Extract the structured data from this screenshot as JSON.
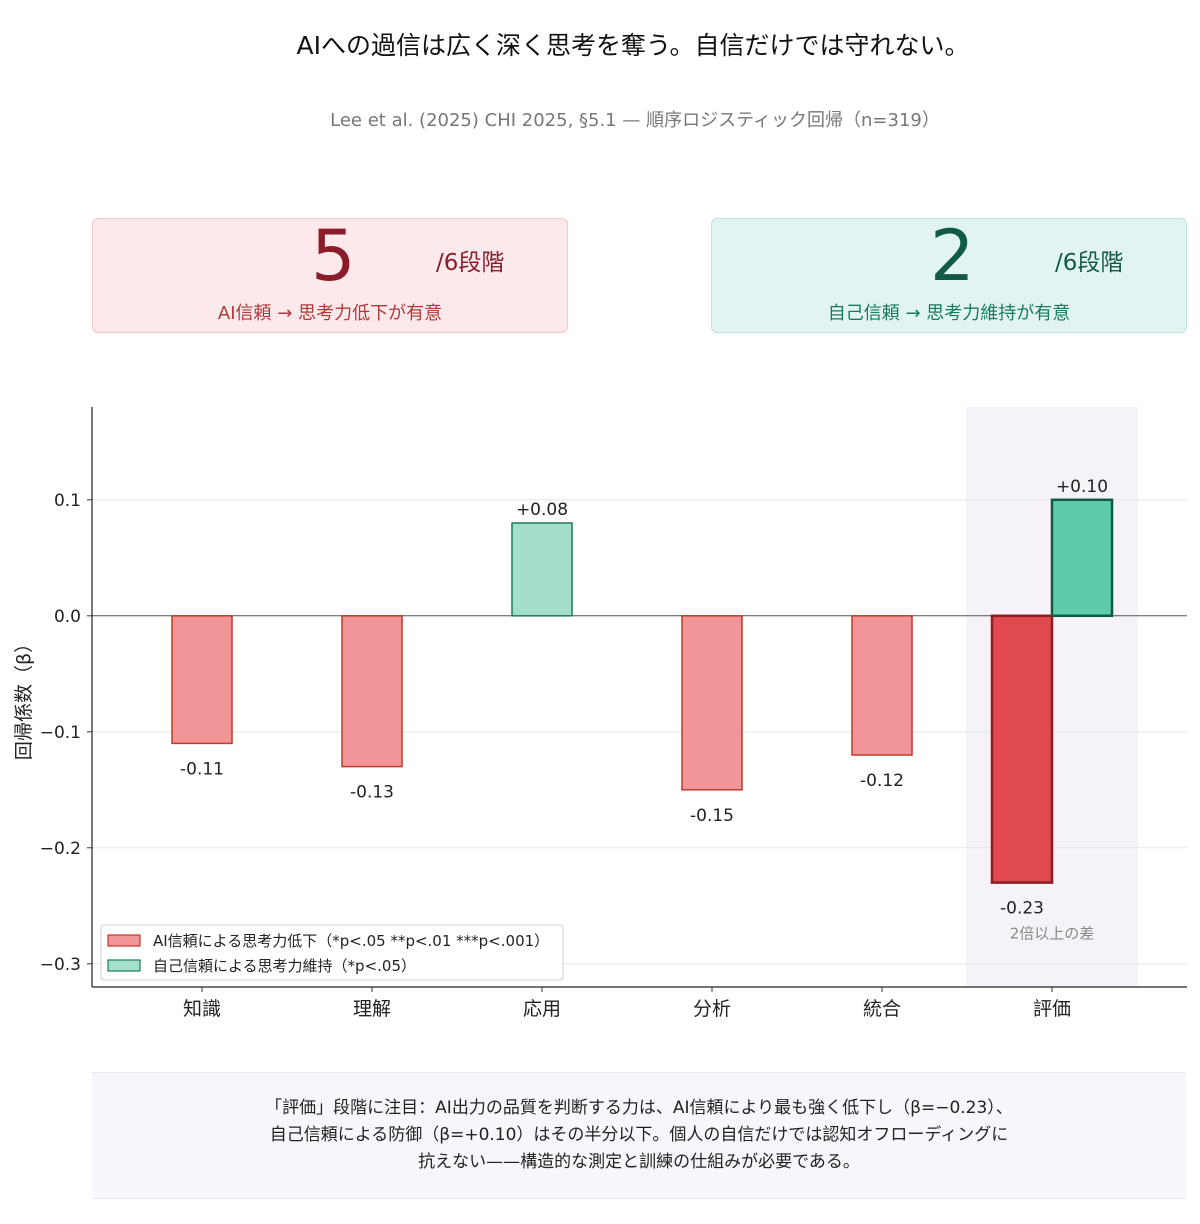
{
  "title": "AIへの過信は広く深く思考を奪う。自信だけでは守れない。",
  "subtitle": "Lee et al. (2025) CHI 2025, §5.1 — 順序ロジスティック回帰（n=319）",
  "cards": {
    "ai": {
      "number": "5",
      "unit": "/6段階",
      "description": "AI信頼 → 思考力低下が有意",
      "color": "#8b1c2a"
    },
    "self": {
      "number": "2",
      "unit": "/6段階",
      "description": "自己信頼 → 思考力維持が有意",
      "color": "#125a45"
    }
  },
  "chart_data": {
    "type": "bar",
    "ylabel": "回帰係数（β）",
    "ylim": [
      -0.32,
      0.18
    ],
    "yticks": [
      0.1,
      0.0,
      -0.1,
      -0.2,
      -0.3
    ],
    "ytick_labels": [
      "0.1",
      "0.0",
      "−0.1",
      "−0.2",
      "−0.3"
    ],
    "categories": [
      "知識",
      "理解",
      "応用",
      "分析",
      "統合",
      "評価"
    ],
    "highlight_category": "評価",
    "highlight_annotation": "2倍以上の差",
    "series": [
      {
        "name": "AI信頼による思考力低下（*p<.05 **p<.01 ***p<.001）",
        "values": [
          -0.11,
          -0.13,
          null,
          -0.15,
          -0.12,
          -0.23
        ],
        "labels": [
          "-0.11",
          "-0.13",
          "",
          "-0.15",
          "-0.12",
          "-0.23"
        ],
        "color": "#f29598",
        "edge": "#c0392b",
        "highlight_color": "#e04a4f",
        "highlight_edge": "#8b1c24"
      },
      {
        "name": "自己信頼による思考力維持（*p<.05）",
        "values": [
          null,
          null,
          0.08,
          null,
          null,
          0.1
        ],
        "labels": [
          "",
          "",
          "+0.08",
          "",
          "",
          "+0.10"
        ],
        "color": "#a3dfcb",
        "edge": "#1f7a5c",
        "highlight_color": "#5ecbaa",
        "highlight_edge": "#0e5a42"
      }
    ],
    "legend": "bottom-left",
    "grid": true
  },
  "note": {
    "lines": [
      "「評価」段階に注目：AI出力の品質を判断する力は、AI信頼により最も強く低下し（β=−0.23）、",
      "自己信頼による防御（β=+0.10）はその半分以下。個人の自信だけでは認知オフローディングに",
      "抗えない——構造的な測定と訓練の仕組みが必要である。"
    ]
  }
}
